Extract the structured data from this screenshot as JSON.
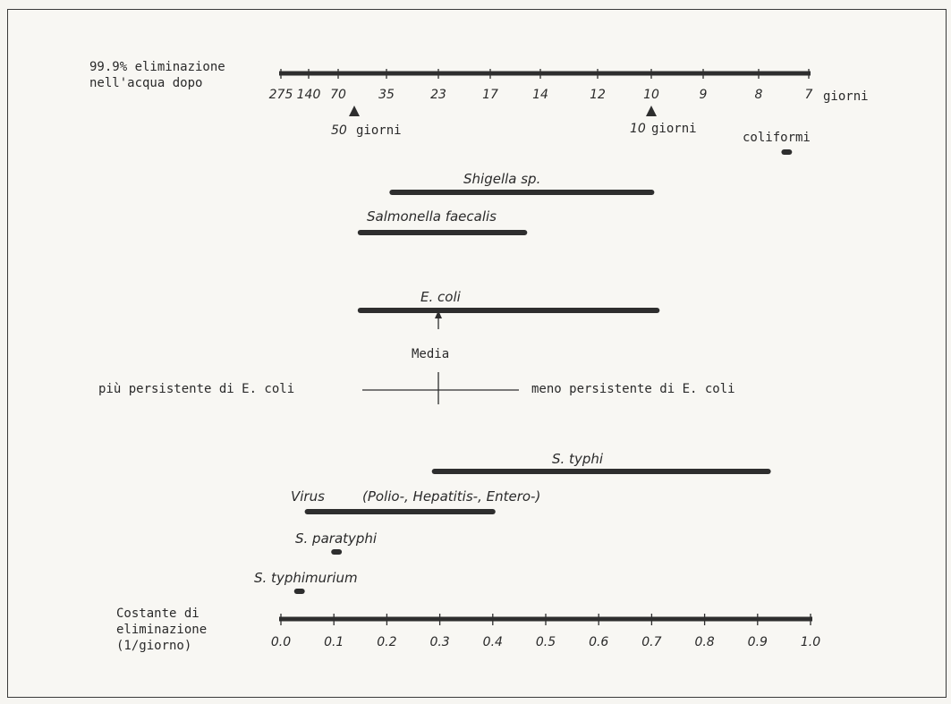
{
  "top_axis": {
    "label_line1": "99.9% eliminazione",
    "label_line2": "nell'acqua dopo",
    "ticks": [
      "275",
      "140",
      "70",
      "35",
      "23",
      "17",
      "14",
      "12",
      "10",
      "9",
      "8",
      "7"
    ],
    "unit": "giorni",
    "markers": [
      {
        "value": "50",
        "unit": "giorni"
      },
      {
        "value": "10",
        "unit": "giorni"
      }
    ]
  },
  "bottom_axis": {
    "label_line1": "Costante di",
    "label_line2": "eliminazione",
    "label_line3": "(1/giorno)",
    "ticks": [
      "0.0",
      "0.1",
      "0.2",
      "0.3",
      "0.4",
      "0.5",
      "0.6",
      "0.7",
      "0.8",
      "0.9",
      "1.0"
    ],
    "range": [
      0.0,
      1.0
    ]
  },
  "organisms": [
    {
      "label": "coliformi",
      "from": 0.95,
      "to": 0.96
    },
    {
      "label": "Shigella sp.",
      "from": 0.21,
      "to": 0.7
    },
    {
      "label": "Salmonella faecalis",
      "from": 0.15,
      "to": 0.46
    },
    {
      "label": "E. coli",
      "from": 0.15,
      "to": 0.71
    },
    {
      "label": "S. typhi",
      "from": 0.29,
      "to": 0.92
    },
    {
      "label": "Virus",
      "label_extra": "(Polio-, Hepatitis-, Entero-)",
      "from": 0.05,
      "to": 0.4
    },
    {
      "label": "S. paratyphi",
      "from": 0.1,
      "to": 0.11
    },
    {
      "label": "S. typhimurium",
      "from": 0.03,
      "to": 0.04
    }
  ],
  "mean": {
    "label": "Media",
    "value": 0.3,
    "left_text": "più persistente di E. coli",
    "right_text": "meno persistente di E. coli"
  }
}
